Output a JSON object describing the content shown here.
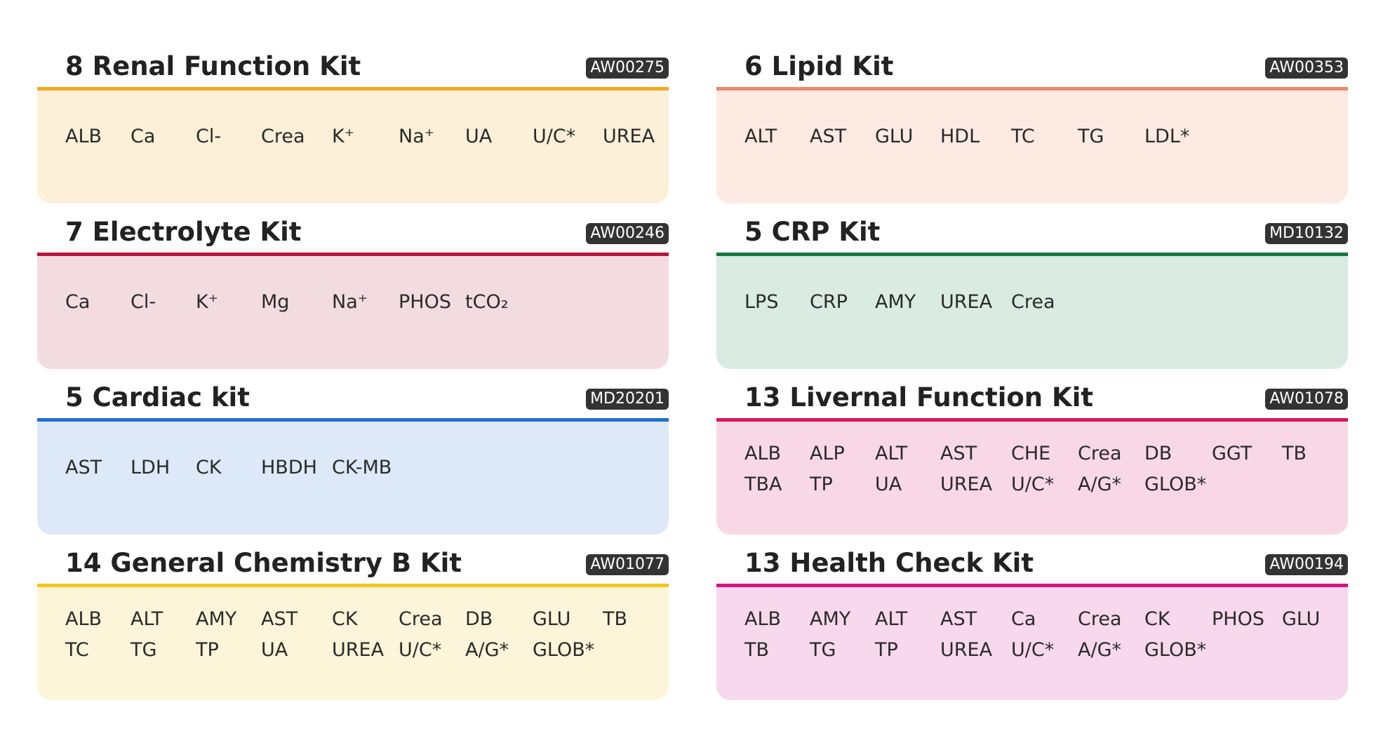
{
  "kits": [
    {
      "title": "8 Renal Function Kit",
      "code": "AW00275",
      "color": "#f5a81c",
      "background": "#fdf0d9",
      "items": [
        [
          "ALB",
          "Ca",
          "Cl-",
          "Crea",
          "K⁺",
          "Na⁺",
          "UA",
          "U/C*",
          "UREA"
        ]
      ]
    },
    {
      "title": "6 Lipid Kit",
      "code": "AW00353",
      "color": "#ee8866",
      "background": "#fdeae2",
      "items": [
        [
          "ALT",
          "AST",
          "GLU",
          "HDL",
          "TC",
          "TG",
          "LDL*"
        ]
      ]
    },
    {
      "title": "7 Electrolyte Kit",
      "code": "AW00246",
      "color": "#b8173d",
      "background": "#f3dbe2",
      "items": [
        [
          "Ca",
          "Cl-",
          "K⁺",
          "Mg",
          "Na⁺",
          "PHOS",
          "tCO₂"
        ]
      ]
    },
    {
      "title": "5 CRP Kit",
      "code": "MD10132",
      "color": "#137a3c",
      "background": "#d9ebe2",
      "items": [
        [
          "LPS",
          "CRP",
          "AMY",
          "UREA",
          "Crea"
        ]
      ]
    },
    {
      "title": "5 Cardiac kit",
      "code": "MD20201",
      "color": "#1f6fd2",
      "background": "#dde8f8",
      "items": [
        [
          "AST",
          "LDH",
          "CK",
          "HBDH",
          "CK-MB"
        ]
      ]
    },
    {
      "title": "13 Livernal Function Kit",
      "code": "AW01078",
      "color": "#d8155c",
      "background": "#f9d8e5",
      "items": [
        [
          "ALB",
          "ALP",
          "ALT",
          "AST",
          "CHE",
          "Crea",
          "DB",
          "GGT",
          "TB"
        ],
        [
          "TBA",
          "TP",
          "UA",
          "UREA",
          "U/C*",
          "A/G*",
          "GLOB*"
        ]
      ]
    },
    {
      "title": "14 General Chemistry B Kit",
      "code": "AW01077",
      "color": "#f5c71a",
      "background": "#fdf5d9",
      "items": [
        [
          "ALB",
          "ALT",
          "AMY",
          "AST",
          "CK",
          "Crea",
          "DB",
          "GLU",
          "TB"
        ],
        [
          "TC",
          "TG",
          "TP",
          "UA",
          "UREA",
          "U/C*",
          "A/G*",
          "GLOB*"
        ]
      ]
    },
    {
      "title": "13 Health Check Kit",
      "code": "AW00194",
      "color": "#d6157f",
      "background": "#f8d8ec",
      "items": [
        [
          "ALB",
          "AMY",
          "ALT",
          "AST",
          "Ca",
          "Crea",
          "CK",
          "PHOS",
          "GLU"
        ],
        [
          "TB",
          "TG",
          "TP",
          "UREA",
          "U/C*",
          "A/G*",
          "GLOB*"
        ]
      ]
    }
  ]
}
